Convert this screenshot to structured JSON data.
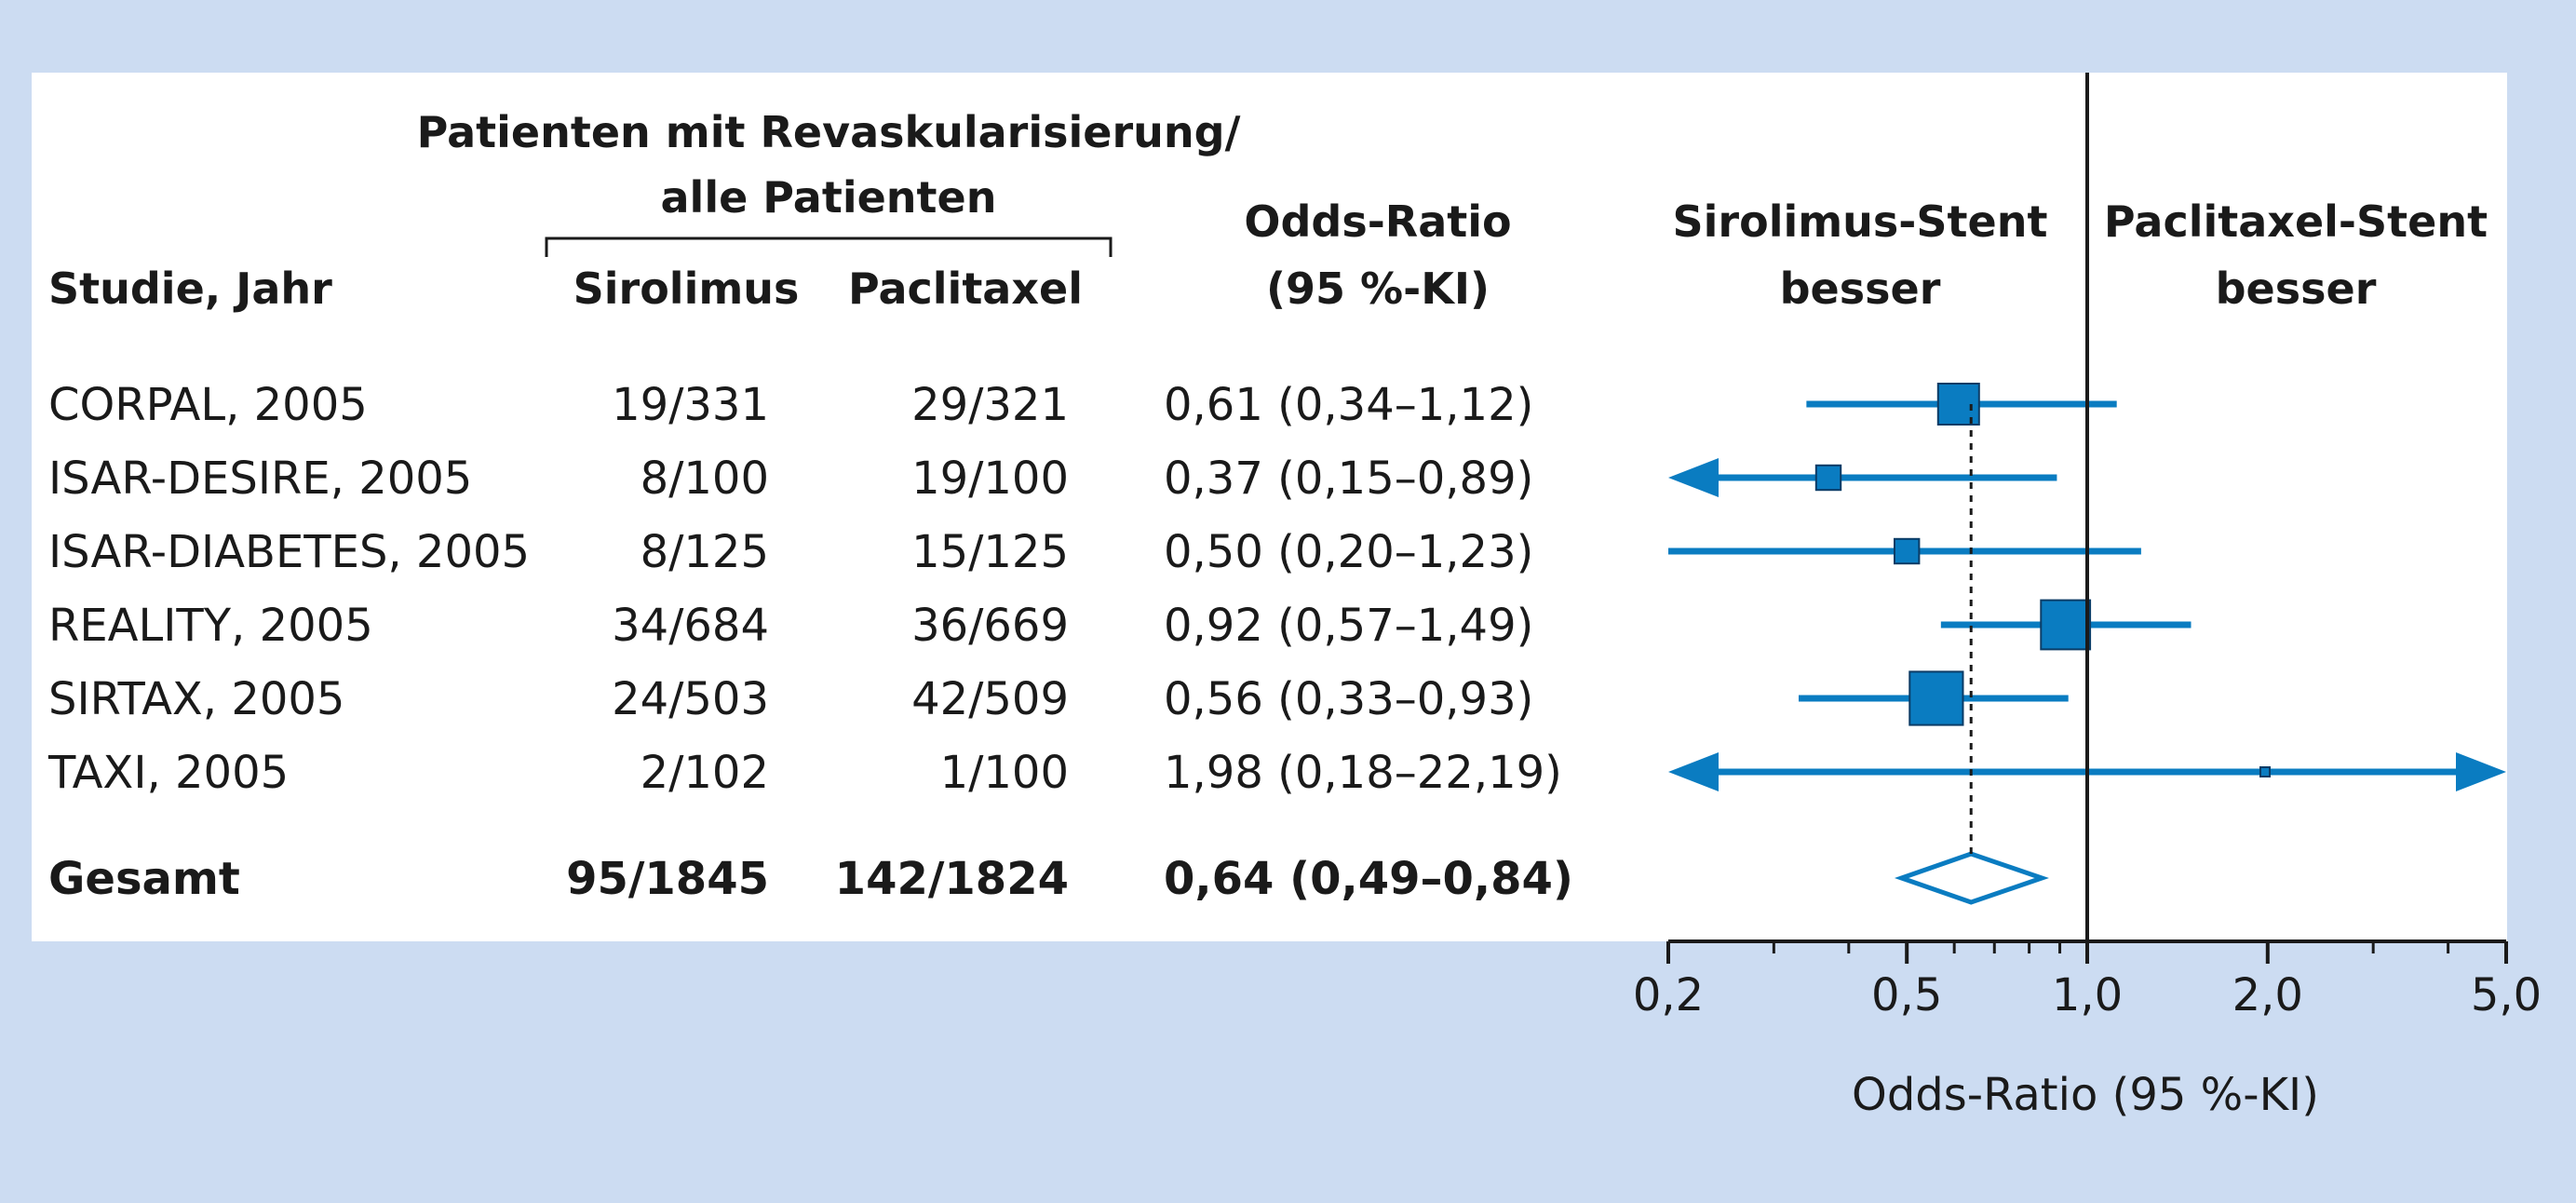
{
  "colors": {
    "background": "#ccdcf2",
    "panel": "#ffffff",
    "marker": "#0a7cc1",
    "text": "#1a1a1a"
  },
  "headers": {
    "group_line1": "Patienten mit Revaskularisierung/",
    "group_line2": "alle Patienten",
    "study": "Studie, Jahr",
    "sirolimus": "Sirolimus",
    "paclitaxel": "Paclitaxel",
    "or_line1": "Odds-Ratio",
    "or_line2": "(95 %-KI)",
    "left_favors_line1": "Sirolimus-Stent",
    "left_favors_line2": "besser",
    "right_favors_line1": "Paclitaxel-Stent",
    "right_favors_line2": "besser"
  },
  "chart_data": {
    "type": "forest",
    "x_scale": "log",
    "xlim": [
      0.2,
      5.0
    ],
    "xlabel": "Odds-Ratio (95 %-KI)",
    "x_ticks": [
      {
        "value": 0.2,
        "label": "0,2"
      },
      {
        "value": 0.5,
        "label": "0,5"
      },
      {
        "value": 1.0,
        "label": "1,0"
      },
      {
        "value": 2.0,
        "label": "2,0"
      },
      {
        "value": 5.0,
        "label": "5,0"
      }
    ],
    "minor_ticks": [
      0.3,
      0.4,
      0.6,
      0.7,
      0.8,
      0.9,
      3.0,
      4.0
    ],
    "reference_line": 1.0,
    "pooled_reference_line": 0.64,
    "studies": [
      {
        "study": "CORPAL, 2005",
        "sirolimus": "19/331",
        "paclitaxel": "29/321",
        "or_text": "0,61 (0,34–1,12)",
        "or": 0.61,
        "ci": [
          0.34,
          1.12
        ],
        "weight": 1.0
      },
      {
        "study": "ISAR-DESIRE, 2005",
        "sirolimus": "8/100",
        "paclitaxel": "19/100",
        "or_text": "0,37 (0,15–0,89)",
        "or": 0.37,
        "ci": [
          0.15,
          0.89
        ],
        "weight": 0.6
      },
      {
        "study": "ISAR-DIABETES, 2005",
        "sirolimus": "8/125",
        "paclitaxel": "15/125",
        "or_text": "0,50 (0,20–1,23)",
        "or": 0.5,
        "ci": [
          0.2,
          1.23
        ],
        "weight": 0.6
      },
      {
        "study": "REALITY, 2005",
        "sirolimus": "34/684",
        "paclitaxel": "36/669",
        "or_text": "0,92 (0,57–1,49)",
        "or": 0.92,
        "ci": [
          0.57,
          1.49
        ],
        "weight": 1.2
      },
      {
        "study": "SIRTAX, 2005",
        "sirolimus": "24/503",
        "paclitaxel": "42/509",
        "or_text": "0,56 (0,33–0,93)",
        "or": 0.56,
        "ci": [
          0.33,
          0.93
        ],
        "weight": 1.3
      },
      {
        "study": "TAXI, 2005",
        "sirolimus": "2/102",
        "paclitaxel": "1/100",
        "or_text": "1,98 (0,18–22,19)",
        "or": 1.98,
        "ci": [
          0.18,
          22.19
        ],
        "weight": 0.15
      }
    ],
    "overall": {
      "study": "Gesamt",
      "sirolimus": "95/1845",
      "paclitaxel": "142/1824",
      "or_text": "0,64 (0,49–0,84)",
      "or": 0.64,
      "ci": [
        0.49,
        0.84
      ]
    }
  }
}
